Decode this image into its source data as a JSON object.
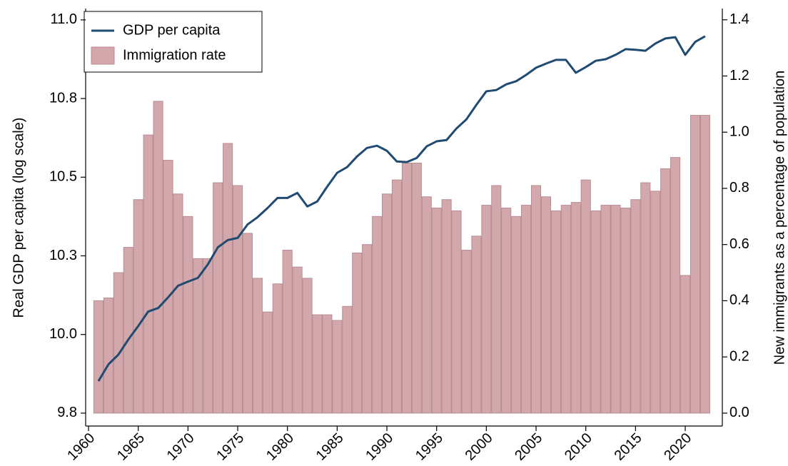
{
  "chart_data": {
    "type": "combo",
    "y_label": "Real GDP per capita (log scale)",
    "y2_label": "New immigrants as a percentage of population",
    "x": [
      1961,
      1962,
      1963,
      1964,
      1965,
      1966,
      1967,
      1968,
      1969,
      1970,
      1971,
      1972,
      1973,
      1974,
      1975,
      1976,
      1977,
      1978,
      1979,
      1980,
      1981,
      1982,
      1983,
      1984,
      1985,
      1986,
      1987,
      1988,
      1989,
      1990,
      1991,
      1992,
      1993,
      1994,
      1995,
      1996,
      1997,
      1998,
      1999,
      2000,
      2001,
      2002,
      2003,
      2004,
      2005,
      2006,
      2007,
      2008,
      2009,
      2010,
      2011,
      2012,
      2013,
      2014,
      2015,
      2016,
      2017,
      2018,
      2019,
      2020,
      2021,
      2022
    ],
    "series": [
      {
        "name": "Immigration rate",
        "type": "bar",
        "axis": "y2",
        "color": "#d2a8ac",
        "edge_color": "#b98d91",
        "values": [
          0.4,
          0.41,
          0.5,
          0.59,
          0.76,
          0.99,
          1.11,
          0.9,
          0.78,
          0.7,
          0.55,
          0.55,
          0.82,
          0.96,
          0.81,
          0.64,
          0.48,
          0.36,
          0.46,
          0.58,
          0.52,
          0.48,
          0.35,
          0.35,
          0.33,
          0.38,
          0.57,
          0.6,
          0.7,
          0.78,
          0.83,
          0.89,
          0.89,
          0.77,
          0.73,
          0.76,
          0.72,
          0.58,
          0.63,
          0.74,
          0.81,
          0.73,
          0.7,
          0.74,
          0.81,
          0.77,
          0.72,
          0.74,
          0.75,
          0.83,
          0.72,
          0.74,
          0.74,
          0.73,
          0.76,
          0.82,
          0.79,
          0.87,
          0.91,
          0.49,
          1.06,
          1.06
        ]
      },
      {
        "name": "GDP per capita",
        "type": "line",
        "axis": "y",
        "color": "#1f4a72",
        "values": [
          9.852,
          9.905,
          9.936,
          9.984,
          10.027,
          10.073,
          10.084,
          10.118,
          10.155,
          10.168,
          10.18,
          10.223,
          10.277,
          10.3,
          10.307,
          10.35,
          10.373,
          10.402,
          10.434,
          10.434,
          10.45,
          10.407,
          10.423,
          10.47,
          10.514,
          10.532,
          10.566,
          10.593,
          10.6,
          10.584,
          10.55,
          10.548,
          10.561,
          10.598,
          10.614,
          10.618,
          10.655,
          10.684,
          10.73,
          10.773,
          10.777,
          10.795,
          10.805,
          10.825,
          10.848,
          10.861,
          10.873,
          10.873,
          10.832,
          10.85,
          10.87,
          10.875,
          10.889,
          10.907,
          10.905,
          10.902,
          10.925,
          10.941,
          10.945,
          10.889,
          10.93,
          10.948
        ]
      }
    ],
    "xlim": [
      1959.71,
      2023.73
    ],
    "xticks": [
      1960,
      1965,
      1970,
      1975,
      1980,
      1985,
      1990,
      1995,
      2000,
      2005,
      2010,
      2015,
      2020
    ],
    "ylim": [
      9.709,
      11.036
    ],
    "yticks": [
      {
        "value": 9.75,
        "label": "9.8"
      },
      {
        "value": 10,
        "label": "10.0"
      },
      {
        "value": 10.25,
        "label": "10.3"
      },
      {
        "value": 10.5,
        "label": "10.5"
      },
      {
        "value": 10.75,
        "label": "10.8"
      },
      {
        "value": 11,
        "label": "11.0"
      }
    ],
    "y2lim": [
      -0.046,
      1.44
    ],
    "y2ticks": [
      {
        "value": 0,
        "label": "0.0"
      },
      0.2,
      0.4,
      0.6,
      0.8,
      {
        "value": 1,
        "label": "1.0"
      },
      1.2,
      1.4
    ],
    "legend": "upper-left"
  }
}
